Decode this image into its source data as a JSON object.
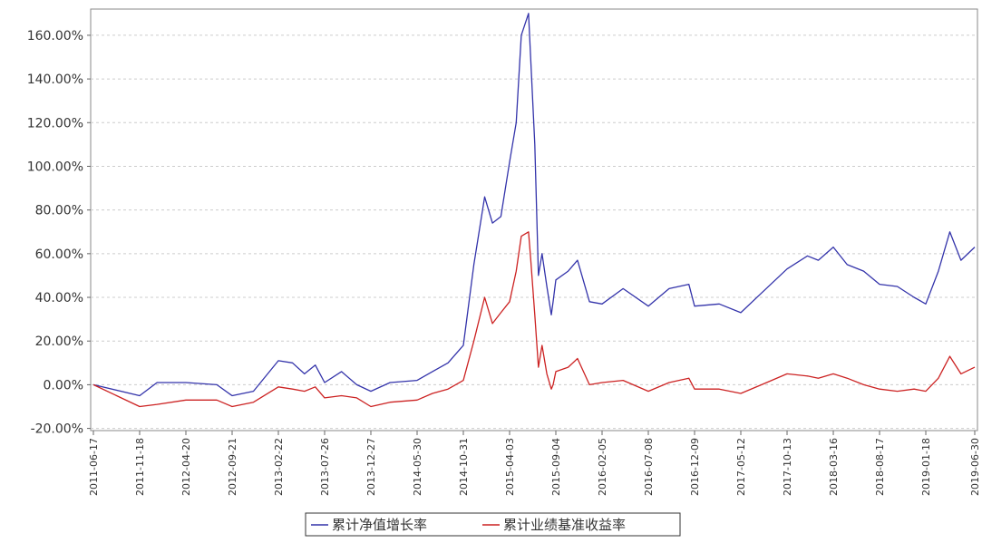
{
  "chart_data": {
    "type": "line",
    "title": "",
    "xlabel": "",
    "ylabel": "",
    "ylim": [
      -21,
      172
    ],
    "grid": true,
    "legend_position": "bottom",
    "y_ticks": [
      -20,
      0,
      20,
      40,
      60,
      80,
      100,
      120,
      140,
      160
    ],
    "y_tick_labels": [
      "-20.00%",
      "0.00%",
      "20.00%",
      "40.00%",
      "60.00%",
      "80.00%",
      "100.00%",
      "120.00%",
      "140.00%",
      "160.00%"
    ],
    "x_tick_labels": [
      "2011-06-17",
      "2011-11-18",
      "2012-04-20",
      "2012-09-21",
      "2013-02-22",
      "2013-07-26",
      "2013-12-27",
      "2014-05-30",
      "2014-10-31",
      "2015-04-03",
      "2015-09-04",
      "2016-02-05",
      "2016-07-08",
      "2016-12-09",
      "2017-05-12",
      "2017-10-13",
      "2018-03-16",
      "2018-08-17",
      "2019-01-18",
      "2019-06-30"
    ],
    "x": [
      "2011-06-17",
      "2011-11-18",
      "2012-01-15",
      "2012-04-20",
      "2012-08-01",
      "2012-09-21",
      "2012-12-01",
      "2013-02-22",
      "2013-04-10",
      "2013-05-20",
      "2013-06-25",
      "2013-07-26",
      "2013-09-20",
      "2013-11-10",
      "2013-12-27",
      "2014-03-01",
      "2014-05-30",
      "2014-07-20",
      "2014-09-10",
      "2014-10-31",
      "2014-12-05",
      "2015-01-10",
      "2015-02-05",
      "2015-03-05",
      "2015-04-03",
      "2015-04-25",
      "2015-05-12",
      "2015-06-05",
      "2015-06-12",
      "2015-06-26",
      "2015-07-08",
      "2015-07-20",
      "2015-08-05",
      "2015-08-20",
      "2015-08-26",
      "2015-09-04",
      "2015-10-15",
      "2015-11-15",
      "2015-12-25",
      "2016-02-05",
      "2016-04-15",
      "2016-07-08",
      "2016-09-15",
      "2016-11-20",
      "2016-12-09",
      "2017-03-01",
      "2017-05-12",
      "2017-07-20",
      "2017-10-13",
      "2017-12-20",
      "2018-01-25",
      "2018-03-16",
      "2018-05-01",
      "2018-06-25",
      "2018-08-17",
      "2018-10-15",
      "2018-12-10",
      "2019-01-18",
      "2019-03-01",
      "2019-04-08",
      "2019-05-15",
      "2019-06-30"
    ],
    "series": [
      {
        "name": "累计净值增长率",
        "color": "#3333aa",
        "values": [
          0,
          -5,
          1,
          1,
          0,
          -5,
          -3,
          11,
          10,
          5,
          9,
          1,
          6,
          0,
          -3,
          1,
          2,
          6,
          10,
          18,
          55,
          86,
          74,
          77,
          102,
          120,
          160,
          170,
          150,
          110,
          50,
          60,
          45,
          32,
          38,
          48,
          52,
          57,
          38,
          37,
          44,
          36,
          44,
          46,
          36,
          37,
          33,
          42,
          53,
          59,
          57,
          63,
          55,
          52,
          46,
          45,
          40,
          37,
          52,
          70,
          57,
          63
        ]
      },
      {
        "name": "累计业绩基准收益率",
        "color": "#cc2222",
        "values": [
          0,
          -10,
          -9,
          -7,
          -7,
          -10,
          -8,
          -1,
          -2,
          -3,
          -1,
          -6,
          -5,
          -6,
          -10,
          -8,
          -7,
          -4,
          -2,
          2,
          20,
          40,
          28,
          33,
          38,
          52,
          68,
          70,
          58,
          32,
          8,
          18,
          5,
          -2,
          0,
          6,
          8,
          12,
          0,
          1,
          2,
          -3,
          1,
          3,
          -2,
          -2,
          -4,
          0,
          5,
          4,
          3,
          5,
          3,
          0,
          -2,
          -3,
          -2,
          -3,
          3,
          13,
          5,
          8
        ]
      }
    ]
  }
}
